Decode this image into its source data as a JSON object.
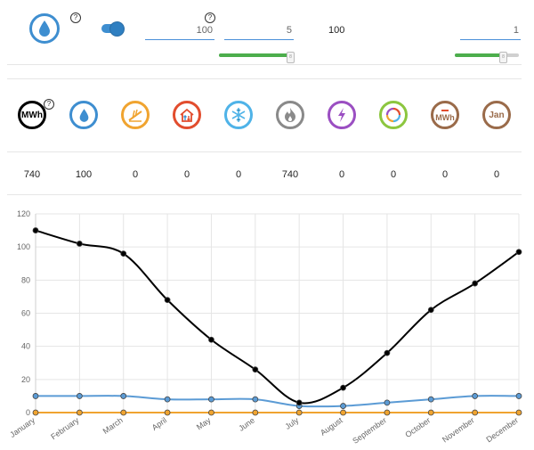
{
  "top": {
    "help_mark": "?",
    "inputs": [
      {
        "name": "first",
        "value": "100"
      },
      {
        "name": "second",
        "value": "5",
        "slider_fraction": 0.95
      },
      {
        "name": "third",
        "value": "1",
        "slider_fraction": 0.75
      }
    ],
    "plain_value": "100",
    "slider_handle_glyph": "8",
    "toggle_on": true
  },
  "icons": [
    {
      "name": "mwh-total",
      "text": "MWh",
      "color": "#000000",
      "value": "740"
    },
    {
      "name": "water",
      "text": "",
      "color": "#3e8ed0",
      "value": "100"
    },
    {
      "name": "solar",
      "text": "",
      "color": "#f0a430",
      "value": "0"
    },
    {
      "name": "heat-house",
      "text": "",
      "color": "#e24d2e",
      "value": "0"
    },
    {
      "name": "snowflake",
      "text": "",
      "color": "#4fb3e8",
      "value": "0"
    },
    {
      "name": "gas-flame",
      "text": "",
      "color": "#8a8a8a",
      "value": "740"
    },
    {
      "name": "electric",
      "text": "",
      "color": "#9b4fc2",
      "value": "0"
    },
    {
      "name": "cycle",
      "text": "",
      "color": "#8cc63f",
      "value": "0"
    },
    {
      "name": "mwh-minus",
      "text": "MWh",
      "color": "#9a6b4a",
      "value": "0"
    },
    {
      "name": "month",
      "text": "Jan",
      "color": "#9a6b4a",
      "value": "0"
    }
  ],
  "chart_data": {
    "type": "line",
    "x": [
      "January",
      "February",
      "March",
      "April",
      "May",
      "June",
      "July",
      "August",
      "September",
      "October",
      "November",
      "December"
    ],
    "ylim": [
      0,
      120
    ],
    "yticks": [
      0,
      20,
      40,
      60,
      80,
      100,
      120
    ],
    "grid": true,
    "series": [
      {
        "color": "#000000",
        "values": [
          110,
          102,
          96,
          68,
          44,
          26,
          6,
          15,
          36,
          62,
          78,
          97
        ]
      },
      {
        "color": "#5b9bd5",
        "values": [
          10,
          10,
          10,
          8,
          8,
          8,
          4,
          4,
          6,
          8,
          10,
          10
        ]
      },
      {
        "color": "#f0a430",
        "values": [
          0,
          0,
          0,
          0,
          0,
          0,
          0,
          0,
          0,
          0,
          0,
          0
        ]
      }
    ]
  }
}
